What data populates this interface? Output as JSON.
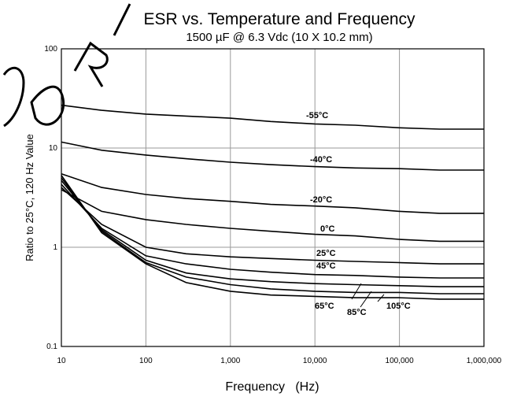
{
  "chart_data": {
    "type": "line",
    "title": "ESR vs. Temperature and Frequency",
    "subtitle": "1500 µF @ 6.3 Vdc (10 X 10.2  mm)",
    "xlabel": "Frequency   (Hz)",
    "ylabel": "Ratio to 25°C, 120 Hz Value",
    "x_scale": "log",
    "y_scale": "log",
    "xlim": [
      10,
      1000000
    ],
    "ylim": [
      0.1,
      100
    ],
    "grid": true,
    "x_ticks": [
      {
        "value": 10,
        "label": "10"
      },
      {
        "value": 100,
        "label": "100"
      },
      {
        "value": 1000,
        "label": "1,000"
      },
      {
        "value": 10000,
        "label": "10,000"
      },
      {
        "value": 100000,
        "label": "100,000"
      },
      {
        "value": 1000000,
        "label": "1,000,000"
      }
    ],
    "y_ticks": [
      {
        "value": 0.1,
        "label": "0.1"
      },
      {
        "value": 1,
        "label": "1"
      },
      {
        "value": 10,
        "label": "10"
      },
      {
        "value": 100,
        "label": "100"
      }
    ],
    "series": [
      {
        "name": "-55°C",
        "x": [
          10,
          30,
          100,
          300,
          1000,
          3000,
          10000,
          30000,
          100000,
          300000,
          1000000
        ],
        "y": [
          27,
          24,
          22,
          21,
          20,
          18.5,
          17.5,
          17,
          16,
          15.5,
          15.5
        ]
      },
      {
        "name": "-40°C",
        "x": [
          10,
          30,
          100,
          300,
          1000,
          3000,
          10000,
          30000,
          100000,
          300000,
          1000000
        ],
        "y": [
          11.5,
          9.5,
          8.5,
          7.8,
          7.2,
          6.8,
          6.5,
          6.3,
          6.2,
          6.0,
          6.0
        ]
      },
      {
        "name": "-20°C",
        "x": [
          10,
          30,
          100,
          300,
          1000,
          3000,
          10000,
          30000,
          100000,
          300000,
          1000000
        ],
        "y": [
          5.5,
          4.0,
          3.4,
          3.1,
          2.9,
          2.7,
          2.6,
          2.5,
          2.3,
          2.2,
          2.2
        ]
      },
      {
        "name": "0°C",
        "x": [
          10,
          30,
          100,
          300,
          1000,
          3000,
          10000,
          30000,
          100000,
          300000,
          1000000
        ],
        "y": [
          3.8,
          2.3,
          1.9,
          1.7,
          1.55,
          1.45,
          1.35,
          1.3,
          1.2,
          1.15,
          1.15
        ]
      },
      {
        "name": "25°C",
        "x": [
          10,
          30,
          100,
          300,
          1000,
          3000,
          10000,
          30000,
          100000,
          300000,
          1000000
        ],
        "y": [
          4.0,
          1.7,
          1.0,
          0.86,
          0.8,
          0.77,
          0.74,
          0.72,
          0.7,
          0.68,
          0.68
        ]
      },
      {
        "name": "45°C",
        "x": [
          10,
          30,
          100,
          300,
          1000,
          3000,
          10000,
          30000,
          100000,
          300000,
          1000000
        ],
        "y": [
          4.3,
          1.55,
          0.82,
          0.68,
          0.6,
          0.56,
          0.53,
          0.52,
          0.5,
          0.49,
          0.49
        ]
      },
      {
        "name": "65°C",
        "x": [
          10,
          30,
          100,
          300,
          1000,
          3000,
          10000,
          30000,
          100000,
          300000,
          1000000
        ],
        "y": [
          4.7,
          1.5,
          0.74,
          0.55,
          0.48,
          0.45,
          0.43,
          0.42,
          0.41,
          0.4,
          0.4
        ]
      },
      {
        "name": "85°C",
        "x": [
          10,
          30,
          100,
          300,
          1000,
          3000,
          10000,
          30000,
          100000,
          300000,
          1000000
        ],
        "y": [
          5.0,
          1.45,
          0.7,
          0.5,
          0.42,
          0.38,
          0.36,
          0.35,
          0.35,
          0.34,
          0.34
        ]
      },
      {
        "name": "105°C",
        "x": [
          10,
          30,
          100,
          300,
          1000,
          3000,
          10000,
          30000,
          100000,
          300000,
          1000000
        ],
        "y": [
          5.3,
          1.4,
          0.68,
          0.44,
          0.36,
          0.33,
          0.32,
          0.31,
          0.31,
          0.3,
          0.3
        ]
      }
    ]
  }
}
